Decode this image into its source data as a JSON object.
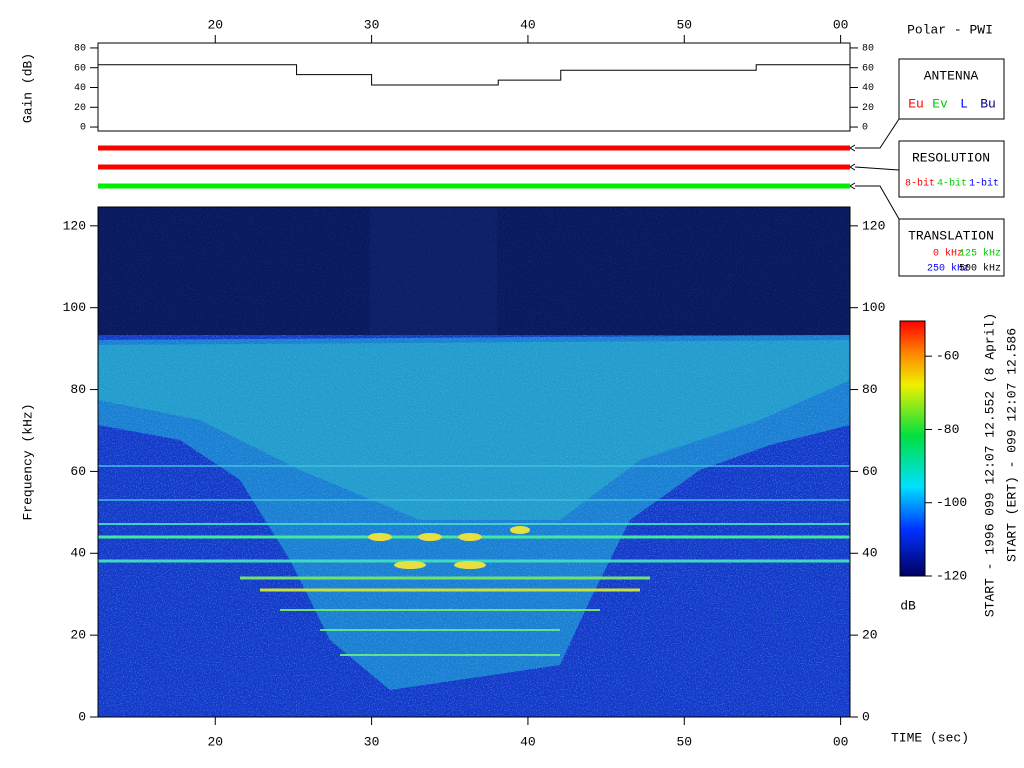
{
  "header": {
    "title": "Polar - PWI",
    "start": "START - 1996 099 12:07 12.552 (8 April)",
    "start_ert": "START (ERT) - 099 12:07 12.586"
  },
  "legends": [
    {
      "title": "ANTENNA",
      "items": [
        {
          "label": "Eu",
          "color": "#ff0000"
        },
        {
          "label": "Ev",
          "color": "#00cc00"
        },
        {
          "label": "L",
          "color": "#0000ff"
        },
        {
          "label": "Bu",
          "color": "#000080"
        }
      ]
    },
    {
      "title": "RESOLUTION",
      "items": [
        {
          "label": "8-bit",
          "color": "#ff0000"
        },
        {
          "label": "4-bit",
          "color": "#00cc00"
        },
        {
          "label": "1-bit",
          "color": "#0000ff"
        }
      ]
    },
    {
      "title": "TRANSLATION",
      "items": [
        {
          "label": "0 kHz",
          "color": "#ff0000"
        },
        {
          "label": "125 kHz",
          "color": "#00cc00"
        },
        {
          "label": "250 kHz",
          "color": "#0000ff"
        },
        {
          "label": "500 kHz",
          "color": "#000000"
        }
      ]
    }
  ],
  "indicators": [
    {
      "color": "#ff0000"
    },
    {
      "color": "#ff0000"
    },
    {
      "color": "#00ee00"
    }
  ],
  "chart_data": [
    {
      "type": "line",
      "ylabel": "Gain (dB)",
      "color": "#000000",
      "x": [
        12.5,
        25.2,
        25.2,
        30,
        30,
        38.1,
        38.1,
        42.1,
        42.1,
        54.6,
        54.6,
        60.6
      ],
      "values": [
        63,
        63,
        53,
        53,
        42.5,
        42.5,
        47.5,
        47.5,
        57.5,
        57.5,
        63,
        63
      ],
      "xlim": [
        12.5,
        60.6
      ],
      "xticks": [
        20,
        30,
        40,
        50,
        {
          "value": 60,
          "label": "00"
        }
      ],
      "ylim": [
        -4,
        85
      ],
      "yticks": [
        0,
        20,
        40,
        60,
        80
      ]
    },
    {
      "type": "heatmap",
      "ylabel": "Frequency (kHz)",
      "xlabel": "TIME (sec)",
      "xlim": [
        12.5,
        60.6
      ],
      "xticks": [
        20,
        30,
        40,
        50,
        {
          "value": 60,
          "label": "00"
        }
      ],
      "ylim": [
        0,
        124.6
      ],
      "yticks": [
        0,
        20,
        40,
        60,
        80,
        100,
        120
      ],
      "colorbar": {
        "label": "dB",
        "lim": [
          -120,
          -50.4
        ],
        "ticks": [
          -60,
          -80,
          -100,
          -120
        ]
      }
    }
  ]
}
